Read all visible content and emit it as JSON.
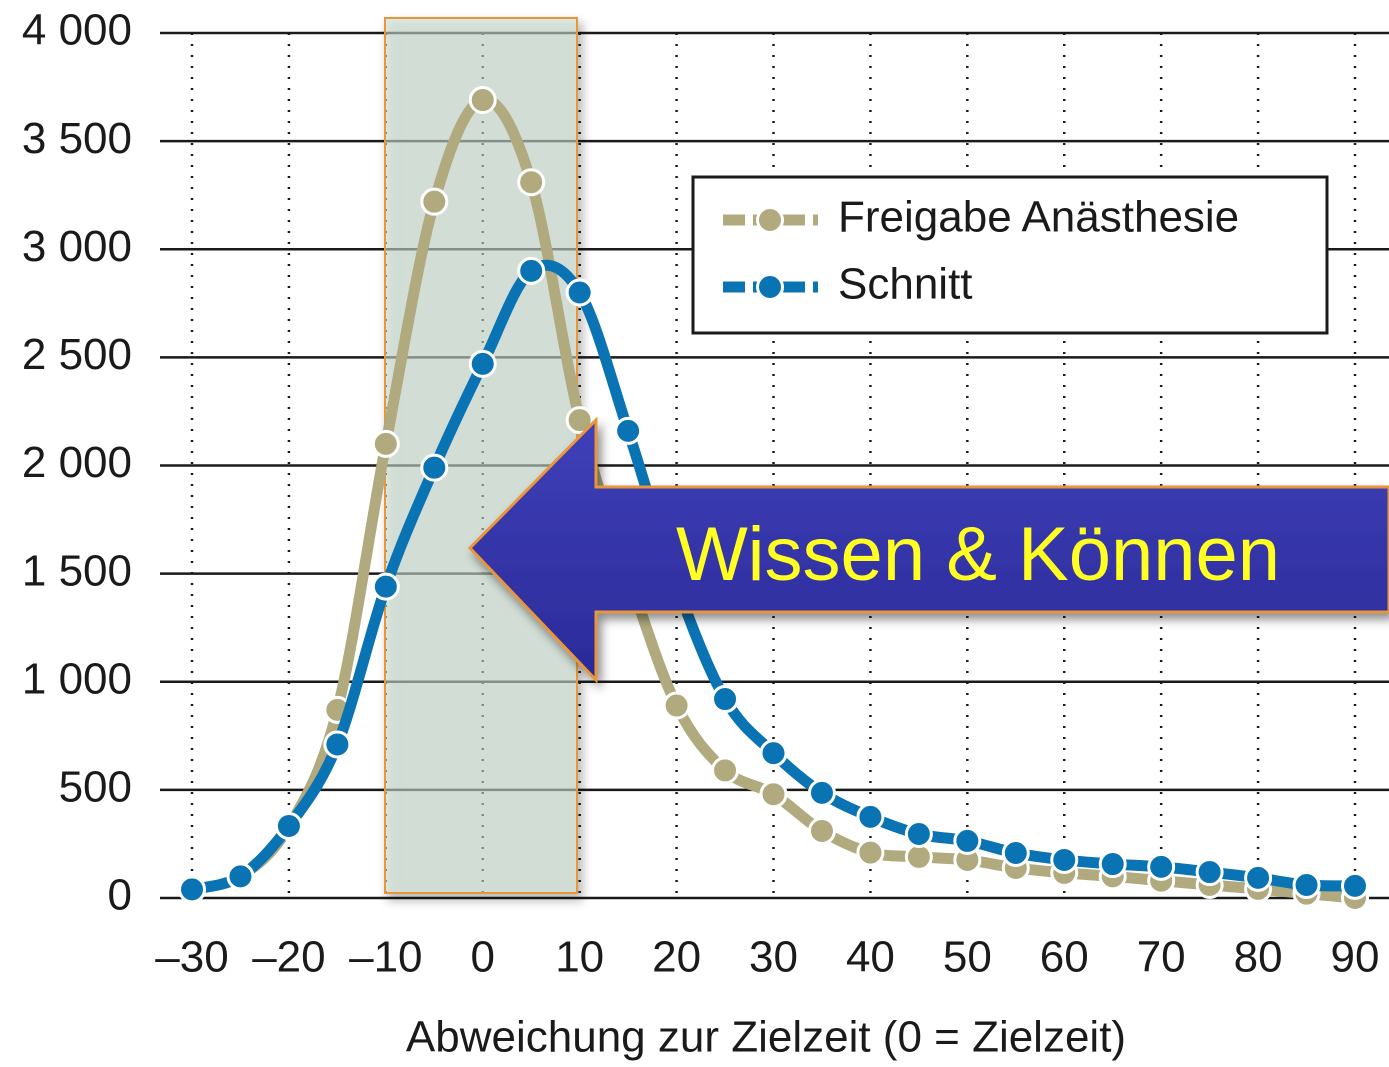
{
  "chart_data": {
    "type": "line",
    "x_label": "Abweichung zur Zielzeit (0 = Zielzeit)",
    "annotation": "Wissen & Können",
    "x": [
      -30,
      -25,
      -20,
      -15,
      -10,
      -5,
      0,
      5,
      10,
      15,
      20,
      25,
      30,
      35,
      40,
      45,
      50,
      55,
      60,
      65,
      70,
      75,
      80,
      85,
      90
    ],
    "series": [
      {
        "name": "Freigabe Anästhesie",
        "color": "#b0aa7e",
        "values": [
          40,
          100,
          330,
          870,
          2100,
          3220,
          3690,
          3310,
          2210,
          1500,
          890,
          590,
          480,
          310,
          210,
          190,
          176,
          139,
          116,
          100,
          80,
          60,
          42,
          20,
          0
        ]
      },
      {
        "name": "Schnitt",
        "color": "#0a73b3",
        "values": [
          40,
          100,
          333,
          710,
          1440,
          1990,
          2470,
          2900,
          2800,
          2160,
          1450,
          920,
          670,
          486,
          375,
          296,
          264,
          208,
          176,
          157,
          144,
          120,
          93,
          60,
          56
        ]
      }
    ],
    "xlim": [
      -30,
      90
    ],
    "xticks": [
      {
        "value": -30,
        "label": "–30"
      },
      {
        "value": -20,
        "label": "–20"
      },
      {
        "value": -10,
        "label": "–10"
      },
      0,
      10,
      20,
      30,
      40,
      50,
      60,
      70,
      80,
      90
    ],
    "ylim": [
      0,
      4000
    ],
    "yticks": [
      0,
      500,
      {
        "value": 1000,
        "label": "1 000"
      },
      {
        "value": 1500,
        "label": "1 500"
      },
      {
        "value": 2000,
        "label": "2 000"
      },
      {
        "value": 2500,
        "label": "2 500"
      },
      {
        "value": 3000,
        "label": "3 000"
      },
      {
        "value": 3500,
        "label": "3 500"
      },
      {
        "value": 4000,
        "label": "4 000"
      }
    ],
    "grid": true,
    "legend": "upper right"
  }
}
